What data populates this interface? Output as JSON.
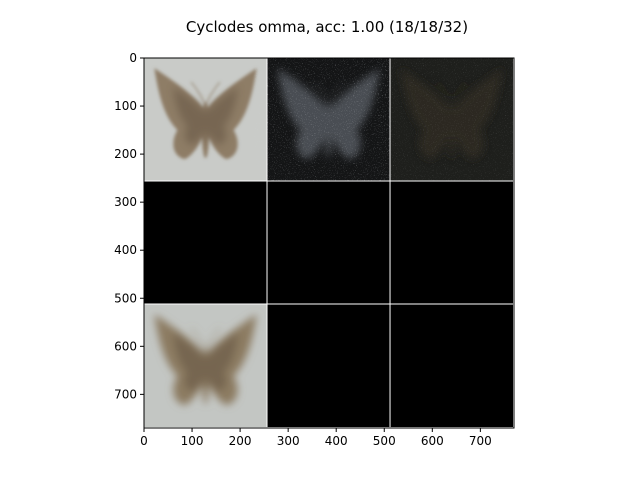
{
  "chart_data": {
    "type": "image_grid",
    "title": "Cyclodes omma, acc: 1.00 (18/18/32)",
    "xlabel": "",
    "ylabel": "",
    "xlim": [
      0,
      770
    ],
    "ylim": [
      770,
      0
    ],
    "x_ticks": [
      0,
      100,
      200,
      300,
      400,
      500,
      600,
      700
    ],
    "y_ticks": [
      0,
      100,
      200,
      300,
      400,
      500,
      600,
      700
    ],
    "grid": {
      "rows": 3,
      "cols": 3,
      "tile_size": 256,
      "separator_color": "#ffffff"
    },
    "tiles": [
      {
        "row": 0,
        "col": 0,
        "kind": "moth_photo",
        "background": "#c9cbc8",
        "wing_color": "#8e7d66"
      },
      {
        "row": 0,
        "col": 1,
        "kind": "noisy_dark_moth",
        "background": "#141516",
        "wing_color": "#4a4d52"
      },
      {
        "row": 0,
        "col": 2,
        "kind": "dim_moth",
        "background": "#1e1f1c",
        "wing_color": "#2f2a22"
      },
      {
        "row": 1,
        "col": 0,
        "kind": "black",
        "background": "#000000"
      },
      {
        "row": 1,
        "col": 1,
        "kind": "black",
        "background": "#000000"
      },
      {
        "row": 1,
        "col": 2,
        "kind": "black",
        "background": "#000000"
      },
      {
        "row": 2,
        "col": 0,
        "kind": "blurred_moth",
        "background": "#c3c6c3",
        "wing_color": "#8c7b62"
      },
      {
        "row": 2,
        "col": 1,
        "kind": "black",
        "background": "#000000"
      },
      {
        "row": 2,
        "col": 2,
        "kind": "black",
        "background": "#000000"
      }
    ]
  }
}
